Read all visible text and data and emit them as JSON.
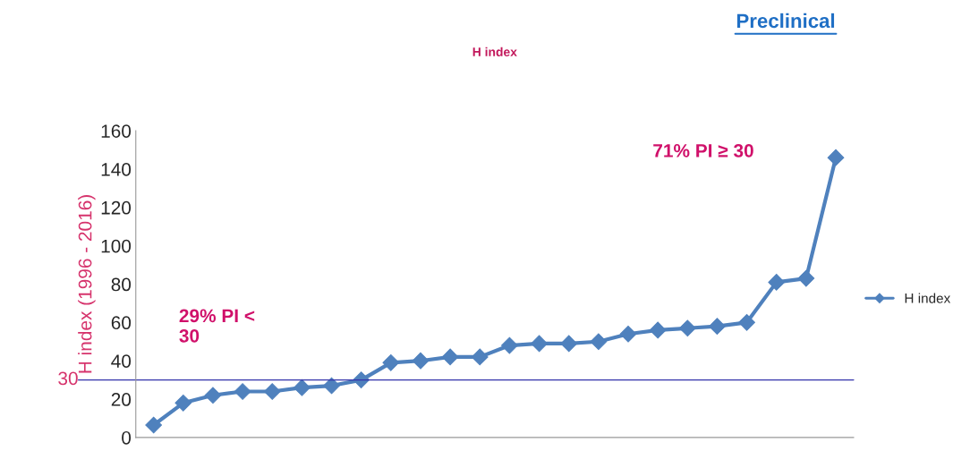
{
  "chart_data": {
    "type": "line",
    "title": "H index",
    "ylabel": "H index (1996 - 2016)",
    "categories": [
      null,
      null,
      null,
      null,
      null,
      null,
      null,
      null,
      null,
      null,
      null,
      null,
      null,
      null,
      null,
      null,
      null,
      null,
      null,
      null,
      null,
      null,
      null,
      null
    ],
    "series": [
      {
        "name": "H index",
        "color": "#4f81bd",
        "values": [
          6.5,
          18,
          22,
          24,
          24,
          26,
          27,
          30,
          39,
          40,
          42,
          42,
          48,
          49,
          49,
          50,
          54,
          56,
          57,
          58,
          60,
          81,
          83,
          146
        ]
      }
    ],
    "ylim": [
      0,
      160
    ],
    "yticks": [
      0,
      20,
      40,
      60,
      80,
      100,
      120,
      140,
      160
    ],
    "ref_lines": [
      {
        "axis": "y",
        "value": 30,
        "label": "30",
        "color": "#3333aa"
      }
    ],
    "annotations": [
      {
        "text": "Preclinical"
      },
      {
        "text": "29% PI <\n30"
      },
      {
        "text": "71% PI ≥ 30"
      }
    ],
    "marker": "diamond",
    "grid": false,
    "legend": "right"
  }
}
